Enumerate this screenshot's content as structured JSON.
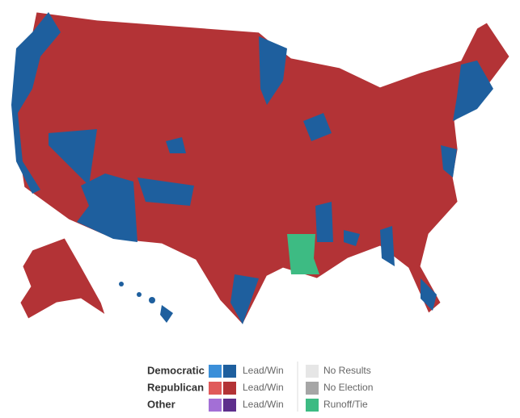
{
  "legend": {
    "parties": [
      {
        "name": "Democratic",
        "label": "Lead/Win",
        "colors": [
          "#3b8fd9",
          "#1e5f9e"
        ]
      },
      {
        "name": "Republican",
        "label": "Lead/Win",
        "colors": [
          "#e05a5a",
          "#b33336"
        ]
      },
      {
        "name": "Other",
        "label": "Lead/Win",
        "colors": [
          "#a36fd6",
          "#5e2f8c"
        ]
      }
    ],
    "status": [
      {
        "label": "No Results",
        "color": "#e6e6e6"
      },
      {
        "label": "No Election",
        "color": "#a6a6a6"
      },
      {
        "label": "Runoff/Tie",
        "color": "#3dbb83"
      }
    ]
  }
}
